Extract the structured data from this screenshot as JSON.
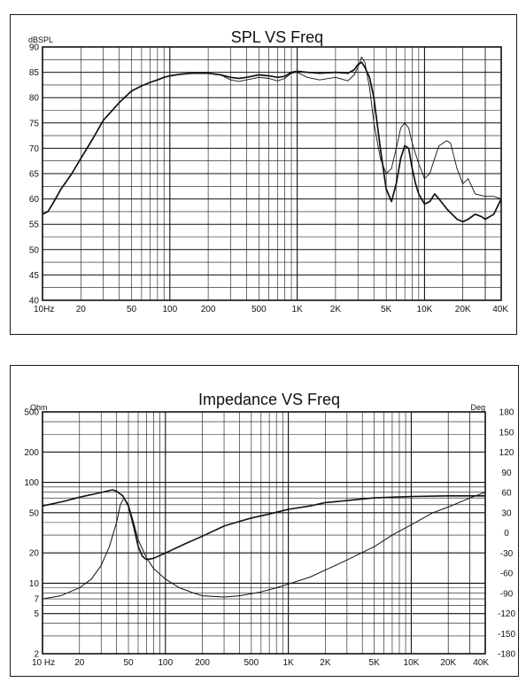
{
  "chart_data": [
    {
      "type": "line",
      "title": "SPL VS Freq",
      "ylabel": "dBSPL",
      "xlabel": "",
      "xscale": "log",
      "xlim": [
        10,
        40000
      ],
      "ylim": [
        40,
        90
      ],
      "grid": true,
      "yticks": [
        40,
        45,
        50,
        55,
        60,
        65,
        70,
        75,
        80,
        85,
        90
      ],
      "xtick_labels": [
        {
          "x": 10,
          "label": "10Hz"
        },
        {
          "x": 20,
          "label": "20"
        },
        {
          "x": 50,
          "label": "50"
        },
        {
          "x": 100,
          "label": "100"
        },
        {
          "x": 200,
          "label": "200"
        },
        {
          "x": 500,
          "label": "500"
        },
        {
          "x": 1000,
          "label": "1K"
        },
        {
          "x": 2000,
          "label": "2K"
        },
        {
          "x": 5000,
          "label": "5K"
        },
        {
          "x": 10000,
          "label": "10K"
        },
        {
          "x": 20000,
          "label": "20K"
        },
        {
          "x": 40000,
          "label": "40K"
        }
      ],
      "series": [
        {
          "style": "thick",
          "points": [
            [
              10,
              57
            ],
            [
              11,
              57.5
            ],
            [
              12,
              59
            ],
            [
              14,
              62
            ],
            [
              17,
              65
            ],
            [
              20,
              68
            ],
            [
              25,
              72
            ],
            [
              30,
              75.5
            ],
            [
              40,
              79
            ],
            [
              50,
              81.3
            ],
            [
              60,
              82.3
            ],
            [
              70,
              83
            ],
            [
              80,
              83.5
            ],
            [
              90,
              84
            ],
            [
              100,
              84.3
            ],
            [
              120,
              84.6
            ],
            [
              150,
              84.8
            ],
            [
              200,
              84.8
            ],
            [
              250,
              84.5
            ],
            [
              300,
              84
            ],
            [
              350,
              83.8
            ],
            [
              400,
              84
            ],
            [
              500,
              84.5
            ],
            [
              600,
              84.3
            ],
            [
              700,
              84
            ],
            [
              800,
              84.2
            ],
            [
              900,
              85
            ],
            [
              1000,
              85.2
            ],
            [
              1200,
              85
            ],
            [
              1500,
              84.8
            ],
            [
              2000,
              85
            ],
            [
              2500,
              84.8
            ],
            [
              2800,
              85.5
            ],
            [
              3000,
              86.5
            ],
            [
              3200,
              87
            ],
            [
              3400,
              86
            ],
            [
              3700,
              84
            ],
            [
              4000,
              80
            ],
            [
              4500,
              70
            ],
            [
              5000,
              62
            ],
            [
              5500,
              59.5
            ],
            [
              6000,
              63
            ],
            [
              6500,
              68
            ],
            [
              7000,
              70.5
            ],
            [
              7500,
              70
            ],
            [
              8000,
              66
            ],
            [
              8500,
              63
            ],
            [
              9000,
              61
            ],
            [
              10000,
              59
            ],
            [
              11000,
              59.5
            ],
            [
              12000,
              61
            ],
            [
              13000,
              60
            ],
            [
              15000,
              58
            ],
            [
              18000,
              56
            ],
            [
              20000,
              55.5
            ],
            [
              22000,
              56
            ],
            [
              25000,
              57
            ],
            [
              28000,
              56.5
            ],
            [
              30000,
              56
            ],
            [
              35000,
              57
            ],
            [
              40000,
              60
            ]
          ]
        },
        {
          "style": "thin",
          "points": [
            [
              10,
              57
            ],
            [
              11,
              57.5
            ],
            [
              12,
              59
            ],
            [
              14,
              62
            ],
            [
              17,
              65
            ],
            [
              20,
              68
            ],
            [
              25,
              72
            ],
            [
              30,
              75.5
            ],
            [
              40,
              79
            ],
            [
              50,
              81.3
            ],
            [
              60,
              82.3
            ],
            [
              70,
              83
            ],
            [
              80,
              83.5
            ],
            [
              90,
              84
            ],
            [
              100,
              84.3
            ],
            [
              120,
              84.6
            ],
            [
              150,
              84.8
            ],
            [
              200,
              84.8
            ],
            [
              250,
              84.5
            ],
            [
              300,
              83.5
            ],
            [
              350,
              83.2
            ],
            [
              400,
              83.5
            ],
            [
              500,
              84
            ],
            [
              600,
              83.8
            ],
            [
              700,
              83.3
            ],
            [
              800,
              83.8
            ],
            [
              900,
              84.8
            ],
            [
              1000,
              85
            ],
            [
              1200,
              84
            ],
            [
              1500,
              83.5
            ],
            [
              2000,
              84
            ],
            [
              2500,
              83.3
            ],
            [
              2800,
              84.5
            ],
            [
              3000,
              86
            ],
            [
              3200,
              88
            ],
            [
              3400,
              87
            ],
            [
              3700,
              82
            ],
            [
              4000,
              75
            ],
            [
              4500,
              68
            ],
            [
              5000,
              65
            ],
            [
              5500,
              66
            ],
            [
              6000,
              70
            ],
            [
              6500,
              74
            ],
            [
              7000,
              75
            ],
            [
              7500,
              74
            ],
            [
              8000,
              71
            ],
            [
              9000,
              67
            ],
            [
              10000,
              64
            ],
            [
              11000,
              65
            ],
            [
              12000,
              68
            ],
            [
              13000,
              70.5
            ],
            [
              15000,
              71.5
            ],
            [
              16000,
              71
            ],
            [
              18000,
              66
            ],
            [
              20000,
              63
            ],
            [
              22000,
              64
            ],
            [
              25000,
              61
            ],
            [
              30000,
              60.5
            ],
            [
              35000,
              60.5
            ],
            [
              40000,
              60
            ]
          ]
        }
      ]
    },
    {
      "type": "line",
      "title": "Impedance VS Freq",
      "ylabel": "Ohm",
      "y2label": "Deg",
      "xlabel": "",
      "xscale": "log",
      "yscale": "log",
      "xlim": [
        10,
        40000
      ],
      "ylim": [
        2,
        500
      ],
      "y2lim": [
        -180,
        180
      ],
      "grid": true,
      "yticks": [
        2,
        5,
        7,
        10,
        20,
        50,
        100,
        200,
        500
      ],
      "y2ticks": [
        -180,
        -150,
        -120,
        -90,
        -60,
        -30,
        0,
        30,
        60,
        90,
        120,
        150,
        180
      ],
      "xtick_labels": [
        {
          "x": 10,
          "label": "10 Hz"
        },
        {
          "x": 20,
          "label": "20"
        },
        {
          "x": 50,
          "label": "50"
        },
        {
          "x": 100,
          "label": "100"
        },
        {
          "x": 200,
          "label": "200"
        },
        {
          "x": 500,
          "label": "500"
        },
        {
          "x": 1000,
          "label": "1K"
        },
        {
          "x": 2000,
          "label": "2K"
        },
        {
          "x": 5000,
          "label": "5K"
        },
        {
          "x": 10000,
          "label": "10K"
        },
        {
          "x": 20000,
          "label": "20K"
        },
        {
          "x": 40000,
          "label": "40K"
        }
      ],
      "series": [
        {
          "style": "thin",
          "axis": "ohm",
          "points": [
            [
              10,
              7
            ],
            [
              14,
              7.5
            ],
            [
              20,
              9
            ],
            [
              25,
              11
            ],
            [
              30,
              15
            ],
            [
              35,
              23
            ],
            [
              40,
              40
            ],
            [
              43,
              60
            ],
            [
              46,
              70
            ],
            [
              50,
              60
            ],
            [
              55,
              40
            ],
            [
              60,
              27
            ],
            [
              70,
              18
            ],
            [
              80,
              14
            ],
            [
              100,
              11
            ],
            [
              130,
              9
            ],
            [
              170,
              8
            ],
            [
              200,
              7.5
            ],
            [
              300,
              7.3
            ],
            [
              400,
              7.5
            ],
            [
              600,
              8.2
            ],
            [
              800,
              9
            ],
            [
              1000,
              9.8
            ],
            [
              1500,
              11.5
            ],
            [
              2000,
              13.5
            ],
            [
              3000,
              17
            ],
            [
              5000,
              23
            ],
            [
              7000,
              30
            ],
            [
              10000,
              38
            ],
            [
              15000,
              50
            ],
            [
              20000,
              57
            ],
            [
              30000,
              70
            ],
            [
              40000,
              80
            ]
          ]
        },
        {
          "style": "thick",
          "axis": "deg",
          "points": [
            [
              10,
              40
            ],
            [
              15,
              47
            ],
            [
              20,
              53
            ],
            [
              30,
              60
            ],
            [
              37,
              64
            ],
            [
              40,
              62
            ],
            [
              45,
              55
            ],
            [
              50,
              40
            ],
            [
              55,
              10
            ],
            [
              60,
              -20
            ],
            [
              65,
              -35
            ],
            [
              70,
              -40
            ],
            [
              80,
              -38
            ],
            [
              100,
              -30
            ],
            [
              150,
              -15
            ],
            [
              200,
              -5
            ],
            [
              300,
              10
            ],
            [
              400,
              17
            ],
            [
              500,
              22
            ],
            [
              700,
              28
            ],
            [
              1000,
              35
            ],
            [
              1500,
              40
            ],
            [
              2000,
              45
            ],
            [
              3000,
              48
            ],
            [
              5000,
              52
            ],
            [
              7000,
              53
            ],
            [
              10000,
              54
            ],
            [
              20000,
              55
            ],
            [
              40000,
              55
            ]
          ]
        }
      ]
    }
  ]
}
